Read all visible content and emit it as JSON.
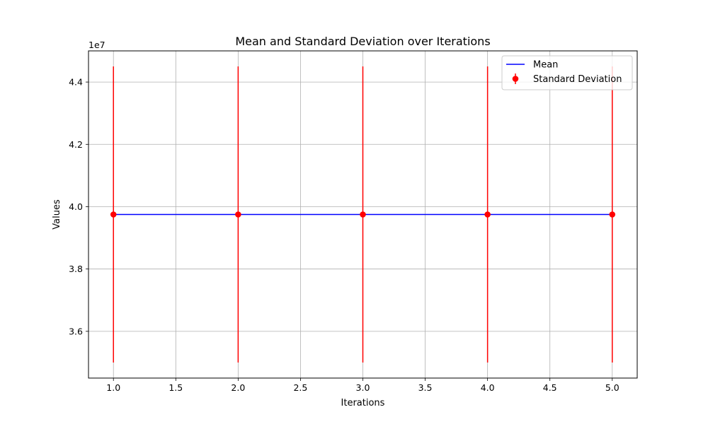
{
  "chart_data": {
    "type": "line",
    "title": "Mean and Standard Deviation over Iterations",
    "xlabel": "Iterations",
    "ylabel": "Values",
    "y_offset_label": "1e7",
    "xlim": [
      0.8,
      5.2
    ],
    "ylim": [
      34500000,
      45000000
    ],
    "x_ticks": [
      1.0,
      1.5,
      2.0,
      2.5,
      3.0,
      3.5,
      4.0,
      4.5,
      5.0
    ],
    "x_tick_labels": [
      "1.0",
      "1.5",
      "2.0",
      "2.5",
      "3.0",
      "3.5",
      "4.0",
      "4.5",
      "5.0"
    ],
    "y_ticks": [
      36000000,
      38000000,
      40000000,
      42000000,
      44000000
    ],
    "y_tick_labels": [
      "3.6",
      "3.8",
      "4.0",
      "4.2",
      "4.4"
    ],
    "grid": true,
    "legend_position": "upper right",
    "x": [
      1,
      2,
      3,
      4,
      5
    ],
    "series": [
      {
        "name": "Mean",
        "kind": "line",
        "color": "#0000ff",
        "values": [
          39750000,
          39750000,
          39750000,
          39750000,
          39750000
        ]
      },
      {
        "name": "Standard Deviation",
        "kind": "errorbar",
        "color": "#ff0000",
        "values": [
          39750000,
          39750000,
          39750000,
          39750000,
          39750000
        ],
        "error": [
          4750000,
          4750000,
          4750000,
          4750000,
          4750000
        ]
      }
    ]
  }
}
